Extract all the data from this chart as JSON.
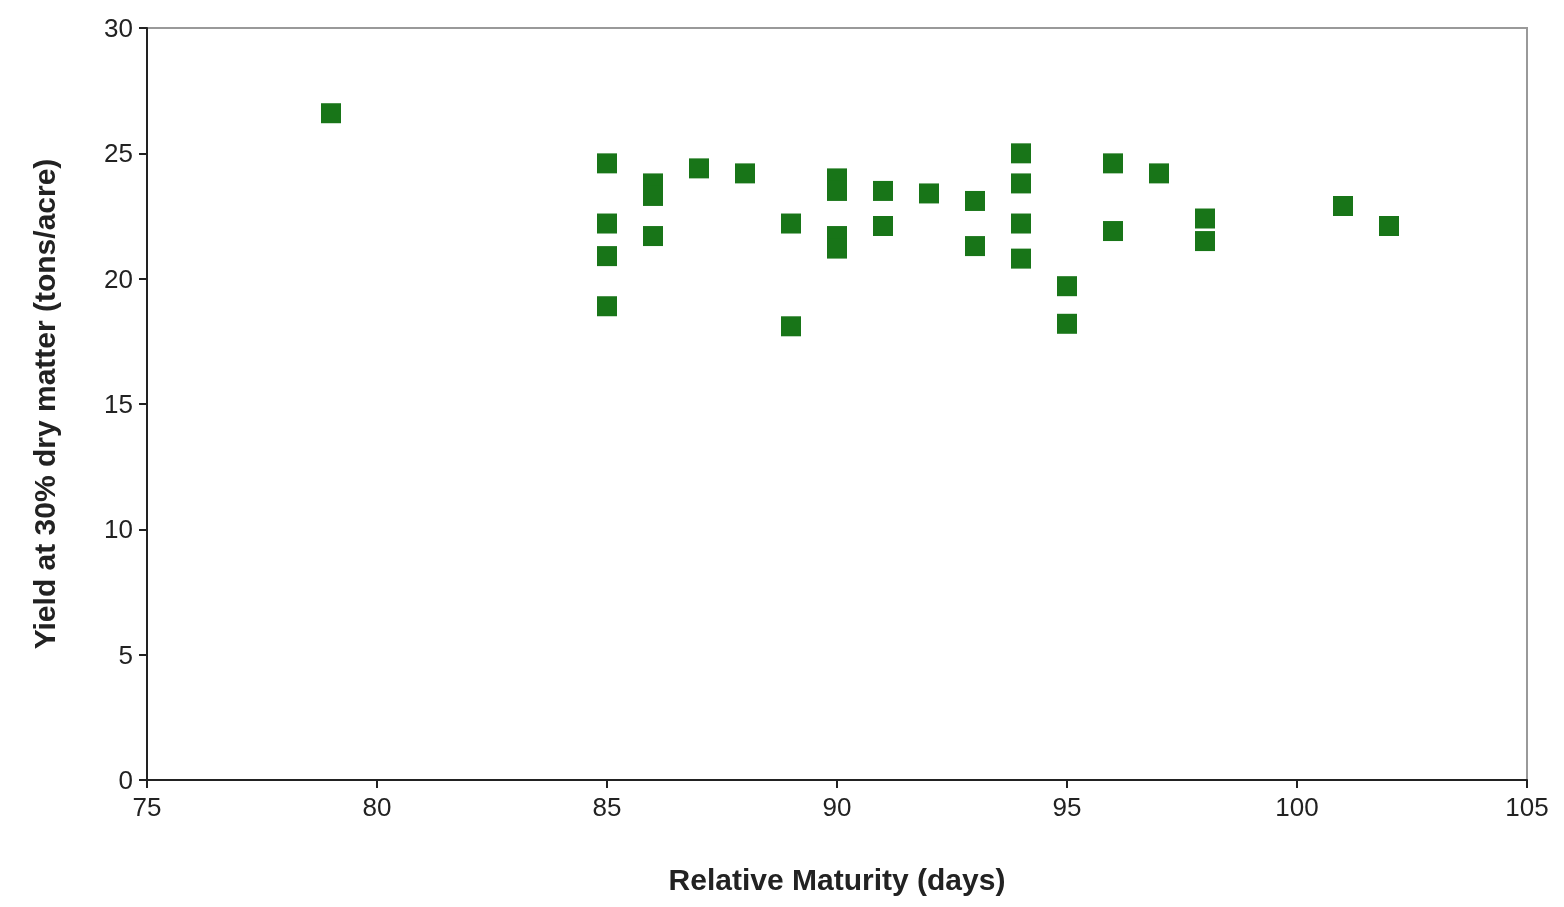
{
  "chart_data": {
    "type": "scatter",
    "xlabel": "Relative Maturity (days)",
    "ylabel": "Yield at 30% dry matter (tons/acre)",
    "x": [
      79,
      85,
      85,
      85,
      85,
      86,
      86,
      86,
      87,
      88,
      89,
      89,
      90,
      90,
      90,
      90,
      91,
      91,
      92,
      93,
      93,
      94,
      94,
      94,
      94,
      95,
      95,
      96,
      96,
      97,
      98,
      98,
      101,
      102
    ],
    "series": [
      {
        "color": "#187518",
        "values": [
          26.6,
          24.6,
          22.2,
          20.9,
          18.9,
          23.8,
          23.3,
          21.7,
          24.4,
          24.2,
          22.2,
          18.1,
          24.0,
          23.5,
          21.7,
          21.2,
          23.5,
          22.1,
          23.4,
          23.1,
          21.3,
          25.0,
          23.8,
          22.2,
          20.8,
          19.7,
          18.2,
          24.6,
          21.9,
          24.2,
          22.4,
          21.5,
          22.9,
          22.1
        ]
      }
    ],
    "xlim": [
      75,
      105
    ],
    "xticks": [
      75,
      80,
      85,
      90,
      95,
      100,
      105
    ],
    "ylim": [
      0,
      30
    ],
    "yticks": [
      0,
      5,
      10,
      15,
      20,
      25,
      30
    ],
    "marker": "square",
    "grid": false
  }
}
